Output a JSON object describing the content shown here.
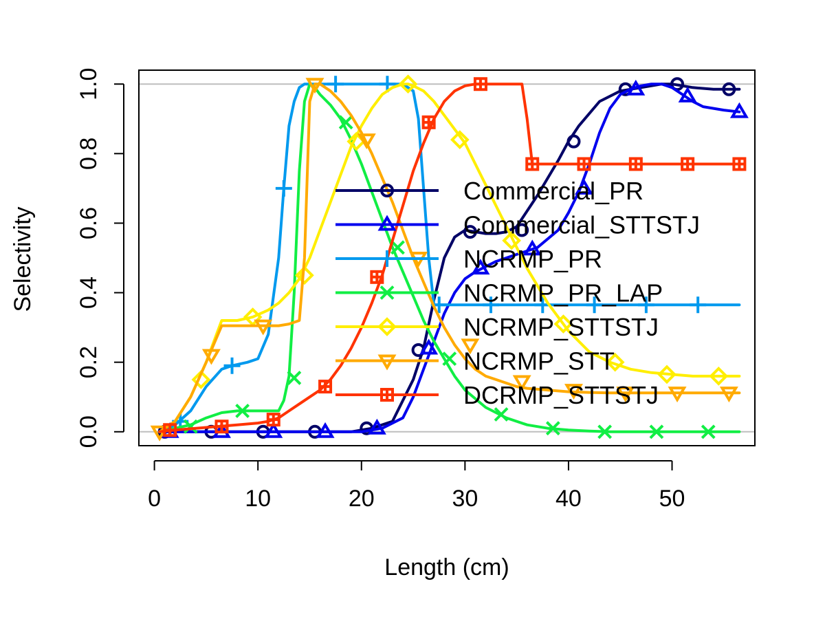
{
  "chart_data": {
    "type": "line",
    "title": "",
    "xlabel": "Length (cm)",
    "ylabel": "Selectivity",
    "xlim": [
      -1.5,
      58
    ],
    "ylim": [
      -0.04,
      1.04
    ],
    "xticks": [
      0,
      10,
      20,
      30,
      40,
      50
    ],
    "yticks": [
      0.0,
      0.2,
      0.4,
      0.6,
      0.8,
      1.0
    ],
    "xtick_labels": [
      "0",
      "10",
      "20",
      "30",
      "40",
      "50"
    ],
    "ytick_labels": [
      "0.0",
      "0.2",
      "0.4",
      "0.6",
      "0.8",
      "1.0"
    ],
    "reference_lines": [
      0,
      1
    ],
    "reference_line_color": "#bebebe",
    "legend_position": "right",
    "series": [
      {
        "name": "Commercial_PR",
        "color": "#000066",
        "marker": "circle",
        "x": [
          1,
          3,
          5,
          7,
          9,
          11,
          13,
          15,
          17,
          19,
          21,
          23,
          25,
          26,
          27,
          28,
          29,
          30,
          31,
          32,
          33,
          34,
          35,
          37,
          39,
          40,
          41,
          43,
          45,
          47,
          49,
          50,
          52,
          54,
          56.5
        ],
        "y": [
          0,
          0,
          0,
          0,
          0,
          0,
          0,
          0,
          0,
          0,
          0.01,
          0.03,
          0.15,
          0.24,
          0.38,
          0.5,
          0.56,
          0.58,
          0.575,
          0.57,
          0.57,
          0.575,
          0.59,
          0.68,
          0.78,
          0.835,
          0.88,
          0.95,
          0.98,
          0.99,
          1.0,
          1.0,
          0.99,
          0.985,
          0.985
        ],
        "markers_x": [
          1,
          5.5,
          10.5,
          15.5,
          20.5,
          25.5,
          30.5,
          35.5,
          40.5,
          45.5,
          50.5,
          55.5
        ],
        "markers_y": [
          0,
          0,
          0,
          0,
          0.01,
          0.235,
          0.575,
          0.58,
          0.835,
          0.985,
          1.0,
          0.985
        ]
      },
      {
        "name": "Commercial_STTSTJ",
        "color": "#0000ee",
        "marker": "triangle-up",
        "x": [
          1,
          5,
          10,
          15,
          20,
          22,
          24,
          25,
          26,
          27,
          28,
          29,
          30,
          31,
          33,
          35,
          36,
          37,
          39,
          40,
          41,
          42,
          43,
          44,
          45,
          46,
          47,
          48,
          49,
          50,
          51,
          52,
          53,
          54,
          55,
          56.5
        ],
        "y": [
          0,
          0,
          0,
          0,
          0,
          0.01,
          0.04,
          0.1,
          0.18,
          0.26,
          0.34,
          0.4,
          0.44,
          0.46,
          0.49,
          0.51,
          0.52,
          0.53,
          0.58,
          0.63,
          0.69,
          0.77,
          0.86,
          0.93,
          0.97,
          0.985,
          0.995,
          1.0,
          1.0,
          0.99,
          0.97,
          0.95,
          0.935,
          0.93,
          0.925,
          0.92
        ],
        "markers_x": [
          1.5,
          6.5,
          11.5,
          16.5,
          21.5,
          26.5,
          31.5,
          36.5,
          41.5,
          46.5,
          51.5,
          56.5
        ],
        "markers_y": [
          0,
          0,
          0,
          0,
          0.01,
          0.24,
          0.47,
          0.525,
          0.7,
          0.985,
          0.965,
          0.92
        ]
      },
      {
        "name": "NCRMP_PR",
        "color": "#0099ee",
        "marker": "plus",
        "x": [
          0.5,
          2,
          3.5,
          5,
          6.5,
          7.5,
          9,
          10,
          11,
          12,
          12.5,
          13,
          13.5,
          14,
          14.5,
          15,
          16,
          18,
          20,
          22,
          24,
          25,
          25.5,
          26,
          26.5,
          27,
          56.5
        ],
        "y": [
          0,
          0.02,
          0.06,
          0.13,
          0.18,
          0.19,
          0.2,
          0.21,
          0.28,
          0.5,
          0.7,
          0.88,
          0.95,
          0.99,
          1.0,
          1.0,
          1.0,
          1.0,
          1.0,
          1.0,
          1.0,
          0.98,
          0.9,
          0.7,
          0.5,
          0.365,
          0.365
        ],
        "markers_x": [
          2.5,
          7.5,
          12.5,
          17.5,
          22.5,
          27.5,
          32.5,
          37.5,
          42.5,
          47.5,
          52.5
        ],
        "markers_y": [
          0.03,
          0.19,
          0.7,
          1.0,
          1.0,
          0.365,
          0.365,
          0.365,
          0.365,
          0.365,
          0.365
        ]
      },
      {
        "name": "NCRMP_PR_LAP",
        "color": "#11ee44",
        "marker": "x",
        "x": [
          0.5,
          2,
          3.5,
          5,
          6.5,
          8,
          10,
          11,
          12,
          12.5,
          13,
          13.5,
          14,
          14.5,
          15,
          15.5,
          16,
          17,
          18,
          19,
          20,
          21,
          22,
          23,
          24,
          25,
          26,
          27,
          28,
          29,
          30,
          32,
          34,
          36,
          38,
          40,
          42,
          44,
          48,
          52,
          56.5
        ],
        "y": [
          0,
          0.01,
          0.02,
          0.04,
          0.055,
          0.06,
          0.06,
          0.06,
          0.06,
          0.09,
          0.16,
          0.4,
          0.75,
          0.95,
          1.0,
          0.99,
          0.97,
          0.94,
          0.9,
          0.84,
          0.77,
          0.69,
          0.61,
          0.53,
          0.46,
          0.39,
          0.32,
          0.26,
          0.21,
          0.16,
          0.12,
          0.07,
          0.04,
          0.02,
          0.01,
          0.005,
          0.002,
          0,
          0,
          0,
          0
        ],
        "markers_x": [
          3.5,
          8.5,
          13.5,
          18.5,
          23.5,
          28.5,
          33.5,
          38.5,
          43.5,
          48.5,
          53.5
        ],
        "markers_y": [
          0.015,
          0.06,
          0.155,
          0.89,
          0.53,
          0.21,
          0.05,
          0.01,
          0,
          0,
          0
        ]
      },
      {
        "name": "NCRMP_STTSTJ",
        "color": "#ffee00",
        "marker": "diamond",
        "x": [
          0.5,
          2,
          3.5,
          5,
          6,
          6.5,
          8,
          9.5,
          11,
          12,
          13,
          14,
          15,
          16,
          17,
          18,
          19,
          20,
          21,
          22,
          23,
          24,
          24.5,
          25,
          26,
          27,
          28,
          29,
          30,
          31,
          32,
          33,
          34,
          35,
          36,
          38,
          40,
          42,
          44,
          46,
          48,
          50,
          52,
          54,
          56.5
        ],
        "y": [
          0,
          0.03,
          0.1,
          0.2,
          0.28,
          0.32,
          0.32,
          0.33,
          0.35,
          0.37,
          0.4,
          0.44,
          0.5,
          0.58,
          0.66,
          0.74,
          0.82,
          0.88,
          0.93,
          0.97,
          0.99,
          1.0,
          1.0,
          0.995,
          0.98,
          0.95,
          0.91,
          0.87,
          0.83,
          0.77,
          0.71,
          0.65,
          0.59,
          0.53,
          0.47,
          0.37,
          0.29,
          0.23,
          0.2,
          0.18,
          0.17,
          0.165,
          0.16,
          0.16,
          0.16
        ],
        "markers_x": [
          4.5,
          9.5,
          14.5,
          19.5,
          24.5,
          29.5,
          34.5,
          39.5,
          44.5,
          49.5,
          54.5
        ],
        "markers_y": [
          0.15,
          0.33,
          0.45,
          0.835,
          1.0,
          0.84,
          0.55,
          0.31,
          0.2,
          0.165,
          0.16
        ]
      },
      {
        "name": "NCRMP_STT",
        "color": "#ffaa00",
        "marker": "triangle-down",
        "x": [
          0.5,
          2,
          3.5,
          5,
          6,
          6.5,
          8,
          10,
          12,
          13,
          14,
          14.5,
          15,
          15.5,
          16,
          17,
          18,
          19,
          20,
          21,
          22,
          23,
          24,
          25,
          26,
          27,
          28,
          29,
          30,
          31,
          32,
          33,
          34,
          35,
          36,
          38,
          40,
          42,
          44,
          46,
          48,
          50,
          52,
          54,
          56.5
        ],
        "y": [
          0,
          0.03,
          0.1,
          0.2,
          0.27,
          0.305,
          0.305,
          0.305,
          0.305,
          0.31,
          0.32,
          0.5,
          0.95,
          1.0,
          1.0,
          0.98,
          0.95,
          0.91,
          0.86,
          0.8,
          0.73,
          0.66,
          0.58,
          0.5,
          0.43,
          0.36,
          0.3,
          0.25,
          0.21,
          0.18,
          0.16,
          0.15,
          0.14,
          0.13,
          0.125,
          0.12,
          0.115,
          0.113,
          0.112,
          0.112,
          0.112,
          0.112,
          0.112,
          0.112,
          0.112
        ],
        "markers_x": [
          0.5,
          5.5,
          10.5,
          15.5,
          20.5,
          25.5,
          30.5,
          35.5,
          40.5,
          45.5,
          50.5,
          55.5
        ],
        "markers_y": [
          0,
          0.22,
          0.305,
          1.0,
          0.84,
          0.5,
          0.25,
          0.145,
          0.12,
          0.112,
          0.112,
          0.112
        ]
      },
      {
        "name": "DCRMP_STTSTJ",
        "color": "#ff3300",
        "marker": "square-plus",
        "x": [
          0.5,
          2,
          4,
          6,
          8,
          10,
          11,
          12,
          13,
          14,
          15,
          16,
          17,
          18,
          19,
          20,
          21,
          22,
          23,
          24,
          25,
          26,
          27,
          28,
          29,
          30,
          31,
          32,
          33,
          34,
          35,
          35.5,
          36,
          36.5,
          37,
          38,
          40,
          45,
          50,
          56.5
        ],
        "y": [
          0,
          0.005,
          0.01,
          0.015,
          0.02,
          0.025,
          0.03,
          0.04,
          0.06,
          0.08,
          0.1,
          0.12,
          0.15,
          0.19,
          0.24,
          0.3,
          0.37,
          0.45,
          0.55,
          0.65,
          0.75,
          0.83,
          0.9,
          0.95,
          0.98,
          0.995,
          1.0,
          1.0,
          1.0,
          1.0,
          1.0,
          1.0,
          0.9,
          0.77,
          0.77,
          0.77,
          0.77,
          0.77,
          0.77,
          0.77
        ],
        "markers_x": [
          1.5,
          6.5,
          11.5,
          16.5,
          21.5,
          26.5,
          31.5,
          36.5,
          41.5,
          46.5,
          51.5,
          56.5
        ],
        "markers_y": [
          0.005,
          0.015,
          0.035,
          0.13,
          0.445,
          0.89,
          1.0,
          0.77,
          0.77,
          0.77,
          0.77,
          0.77
        ]
      }
    ]
  }
}
